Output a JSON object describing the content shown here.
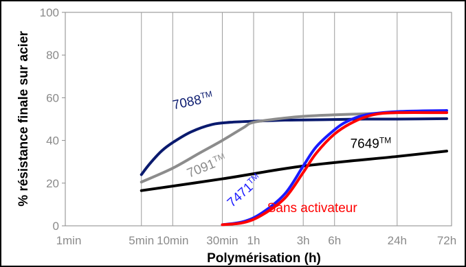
{
  "chart_data": {
    "type": "line",
    "title": "",
    "xlabel": "Polymérisation (h)",
    "ylabel": "% résistance finale sur acier",
    "x_scale": "log",
    "ylim": [
      0,
      100
    ],
    "yticks": [
      0,
      20,
      40,
      60,
      80,
      100
    ],
    "xticks": [
      {
        "label": "1min",
        "hours": 0.01667
      },
      {
        "label": "5min",
        "hours": 0.08333
      },
      {
        "label": "10min",
        "hours": 0.16667
      },
      {
        "label": "30min",
        "hours": 0.5
      },
      {
        "label": "1h",
        "hours": 1
      },
      {
        "label": "3h",
        "hours": 3
      },
      {
        "label": "6h",
        "hours": 6
      },
      {
        "label": "24h",
        "hours": 24
      },
      {
        "label": "72h",
        "hours": 72
      }
    ],
    "grid": {
      "vertical": true,
      "horizontal": false
    },
    "series": [
      {
        "name": "7088™",
        "color": "#0a1a6e",
        "x": [
          0.08333,
          0.1,
          0.13,
          0.16667,
          0.25,
          0.4,
          0.6,
          1,
          2,
          3,
          6,
          12,
          24,
          72
        ],
        "y": [
          24,
          29,
          35,
          39,
          44,
          47.5,
          48.5,
          49,
          49.5,
          49.6,
          49.8,
          50,
          50,
          50.2
        ]
      },
      {
        "name": "7091™",
        "color": "#8c8c8c",
        "x": [
          0.08333,
          0.16667,
          0.3,
          0.5,
          0.8,
          1,
          2,
          3,
          6,
          12,
          24
        ],
        "y": [
          20.5,
          27,
          34,
          40,
          46,
          48.5,
          50.5,
          51.3,
          52,
          52.5,
          53
        ]
      },
      {
        "name": "7649™",
        "color": "#000000",
        "x": [
          0.08333,
          0.5,
          3,
          24,
          72
        ],
        "y": [
          16.5,
          22,
          28,
          32.5,
          35
        ]
      },
      {
        "name": "7471™",
        "color": "#1a1aff",
        "x": [
          0.5,
          0.8,
          1.2,
          2,
          3,
          4,
          6,
          8,
          12,
          24,
          72
        ],
        "y": [
          0.5,
          2,
          6,
          15,
          28,
          37,
          45,
          49,
          52,
          53.5,
          54
        ]
      },
      {
        "name": "Sans activateur",
        "color": "#ff0000",
        "x": [
          0.5,
          0.8,
          1.2,
          2,
          3,
          4,
          6,
          9,
          14,
          24,
          72
        ],
        "y": [
          0.5,
          1.5,
          5,
          13,
          25,
          34,
          43,
          48.5,
          52,
          53,
          53
        ]
      }
    ]
  }
}
